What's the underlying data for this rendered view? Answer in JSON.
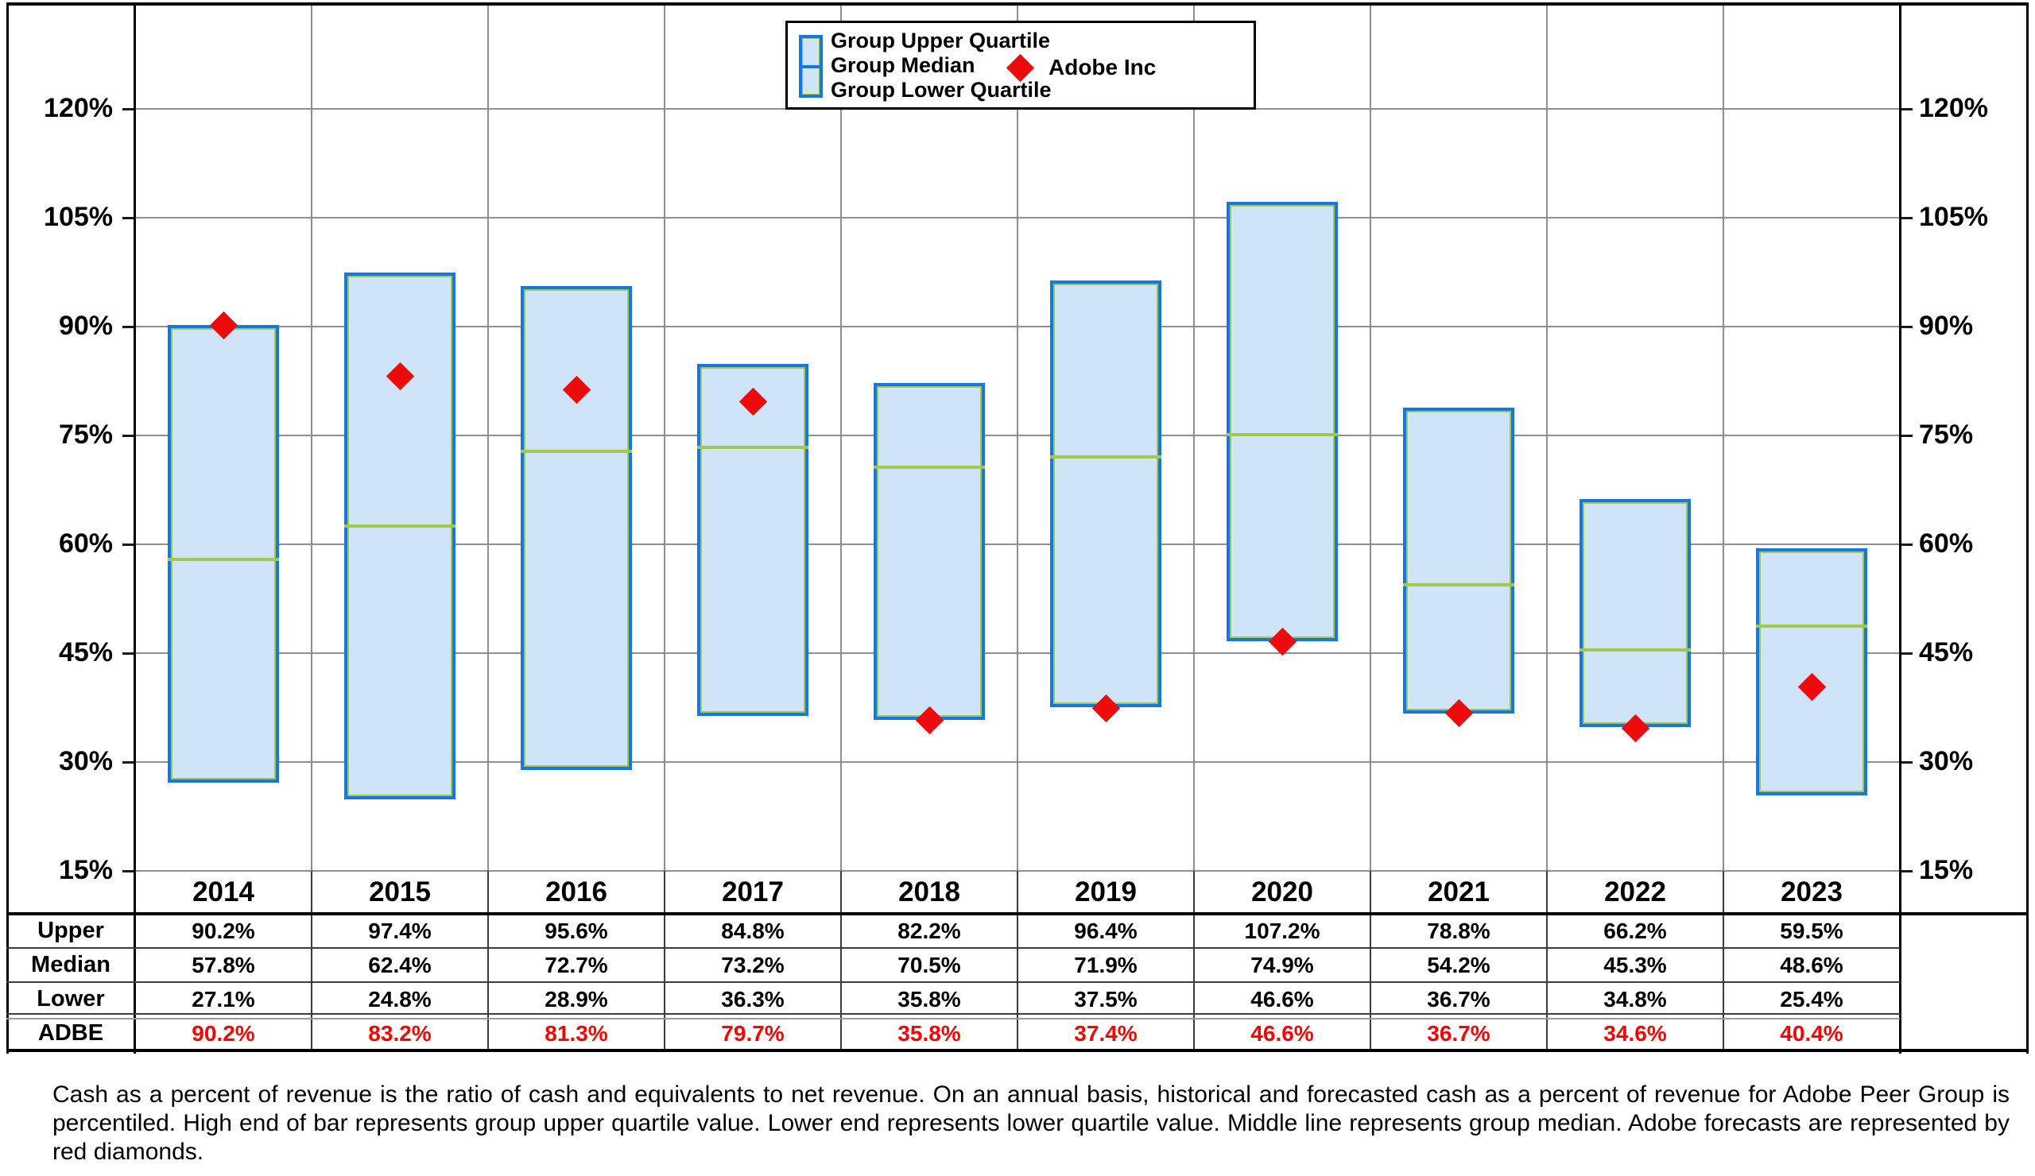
{
  "chart_data": {
    "type": "bar",
    "subtype": "floating-quartile-range-with-markers",
    "title": "",
    "categories": [
      "2014",
      "2015",
      "2016",
      "2017",
      "2018",
      "2019",
      "2020",
      "2021",
      "2022",
      "2023"
    ],
    "series": [
      {
        "name": "Group Upper Quartile",
        "values": [
          90.2,
          97.4,
          95.6,
          84.8,
          82.2,
          96.4,
          107.2,
          78.8,
          66.2,
          59.5
        ]
      },
      {
        "name": "Group Median",
        "values": [
          57.8,
          62.4,
          72.7,
          73.2,
          70.5,
          71.9,
          74.9,
          54.2,
          45.3,
          48.6
        ]
      },
      {
        "name": "Group Lower Quartile",
        "values": [
          27.1,
          24.8,
          28.9,
          36.3,
          35.8,
          37.5,
          46.6,
          36.7,
          34.8,
          25.4
        ]
      },
      {
        "name": "Adobe Inc",
        "values": [
          90.2,
          83.2,
          81.3,
          79.7,
          35.8,
          37.4,
          46.6,
          36.7,
          34.6,
          40.4
        ]
      }
    ],
    "xlabel": "",
    "ylabel": "",
    "yticks": [
      15,
      30,
      45,
      60,
      75,
      90,
      105,
      120
    ],
    "ytick_labels": [
      "15%",
      "30%",
      "45%",
      "60%",
      "75%",
      "90%",
      "105%",
      "120%"
    ],
    "ytick_format": "percent",
    "ylim": [
      15,
      134
    ],
    "grid": true,
    "right_axis_mirrored": true,
    "legend_position": "top-center"
  },
  "legend": {
    "items": [
      "Group Upper Quartile",
      "Group Median",
      "Group Lower Quartile"
    ],
    "marker_label": "Adobe Inc"
  },
  "table": {
    "row_labels": [
      "Upper",
      "Median",
      "Lower",
      "ADBE"
    ]
  },
  "footnote": "Cash as a percent of revenue is the ratio of cash and equivalents to net revenue.  On an annual basis, historical and forecasted cash as a percent of revenue for Adobe Peer Group is percentiled.  High end of bar represents group upper quartile value.  Lower end represents lower quartile value.  Middle line represents group median.  Adobe forecasts are represented by red diamonds.",
  "colors": {
    "bar_fill": "#cfe4f8",
    "bar_border": "#1577e6",
    "bar_inner_outline": "#a0c94c",
    "median_line": "#1577e6",
    "diamond_red": "#ee0a0a",
    "adbe_text_red": "#ff0000",
    "gridline_gray": "#8f8f8f",
    "frame_black": "#000000"
  }
}
